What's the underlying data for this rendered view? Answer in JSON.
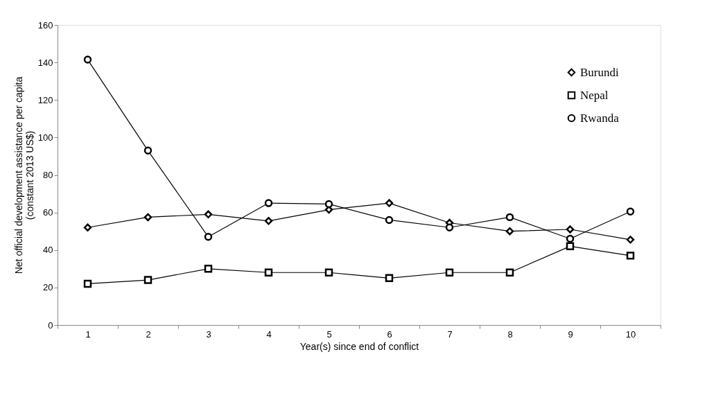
{
  "chart_data": {
    "type": "line",
    "xlabel": "Year(s) since end of conflict",
    "ylabel": "Net official development assistance per capita\n(constant 2013 US$)",
    "categories": [
      "1",
      "2",
      "3",
      "4",
      "5",
      "6",
      "7",
      "8",
      "9",
      "10"
    ],
    "series": [
      {
        "name": "Burundi",
        "color": "#000000",
        "marker": "diamond",
        "values": [
          52,
          57.5,
          59,
          55.5,
          61.5,
          65,
          54.5,
          50,
          51,
          45.5
        ]
      },
      {
        "name": "Nepal",
        "color": "#000000",
        "marker": "square",
        "values": [
          22,
          24,
          30,
          28,
          28,
          25,
          28,
          28,
          42,
          37
        ]
      },
      {
        "name": "Rwanda",
        "color": "#000000",
        "marker": "circle",
        "values": [
          141.5,
          93,
          47,
          65,
          64.5,
          56,
          52,
          57.5,
          46,
          60.5
        ]
      }
    ],
    "ylim": [
      0,
      160
    ],
    "yticks": [
      0,
      20,
      40,
      60,
      80,
      100,
      120,
      140,
      160
    ],
    "grid": false,
    "legend": "top right",
    "line_style": "solid"
  }
}
